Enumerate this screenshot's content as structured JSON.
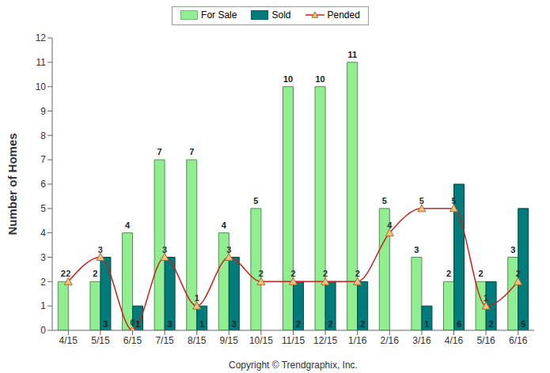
{
  "chart_data": {
    "type": "bar",
    "y_label": "Number of Homes",
    "annotations": [
      "Copyright © Trendgraphix, Inc."
    ],
    "categories": [
      "4/15",
      "5/15",
      "6/15",
      "7/15",
      "8/15",
      "9/15",
      "10/15",
      "11/15",
      "12/15",
      "1/16",
      "2/16",
      "3/16",
      "4/16",
      "5/16",
      "6/16"
    ],
    "series": [
      {
        "name": "For Sale",
        "type": "bar",
        "color": "#90ee90",
        "values": [
          2,
          2,
          4,
          7,
          7,
          4,
          5,
          10,
          10,
          11,
          5,
          3,
          2,
          2,
          3
        ]
      },
      {
        "name": "Sold",
        "type": "bar",
        "color": "#007b7b",
        "values": [
          0,
          3,
          1,
          3,
          1,
          3,
          0,
          2,
          2,
          2,
          0,
          1,
          6,
          2,
          5
        ]
      },
      {
        "name": "Pended",
        "type": "line",
        "color": "#cc2020",
        "marker": "triangle",
        "line_style": "smooth",
        "values": [
          2,
          3,
          0,
          3,
          1,
          3,
          2,
          2,
          2,
          2,
          4,
          5,
          5,
          1,
          2
        ]
      }
    ],
    "ylim": [
      0,
      12
    ],
    "yticks": [
      0,
      1,
      2,
      3,
      4,
      5,
      6,
      7,
      8,
      9,
      10,
      11,
      12
    ],
    "grid": false,
    "legend": "top",
    "data_labels": true
  }
}
